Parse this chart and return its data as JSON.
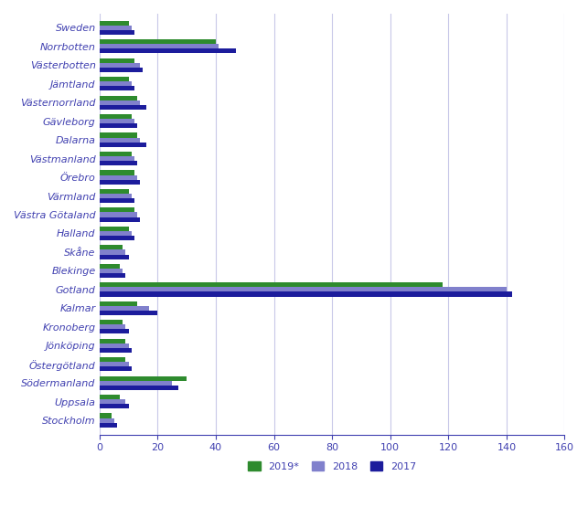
{
  "categories": [
    "Sweden",
    "Norrbotten",
    "Västerbotten",
    "Jämtland",
    "Västernorrland",
    "Gävleborg",
    "Dalarna",
    "Västmanland",
    "Örebro",
    "Värmland",
    "Västra Götaland",
    "Halland",
    "Skåne",
    "Blekinge",
    "Gotland",
    "Kalmar",
    "Kronoberg",
    "Jönköping",
    "Östergötland",
    "Södermanland",
    "Uppsala",
    "Stockholm"
  ],
  "values_2019": [
    10,
    40,
    12,
    10,
    13,
    11,
    13,
    11,
    12,
    10,
    12,
    10,
    8,
    7,
    118,
    13,
    8,
    9,
    9,
    30,
    7,
    4
  ],
  "values_2018": [
    11,
    41,
    14,
    11,
    14,
    12,
    14,
    12,
    13,
    11,
    13,
    11,
    9,
    8,
    140,
    17,
    9,
    10,
    10,
    25,
    9,
    5
  ],
  "values_2017": [
    12,
    47,
    15,
    12,
    16,
    13,
    16,
    13,
    14,
    12,
    14,
    12,
    10,
    9,
    142,
    20,
    10,
    11,
    11,
    27,
    10,
    6
  ],
  "color_2019": "#2e8b2e",
  "color_2018": "#8080cc",
  "color_2017": "#1c1c9c",
  "xlim": [
    0,
    160
  ],
  "xticks": [
    0,
    20,
    40,
    60,
    80,
    100,
    120,
    140,
    160
  ],
  "legend_labels": [
    "2019*",
    "2018",
    "2017"
  ],
  "background_color": "#ffffff",
  "grid_color": "#c8c8e8",
  "label_color": "#4040b0",
  "bar_height": 0.25
}
